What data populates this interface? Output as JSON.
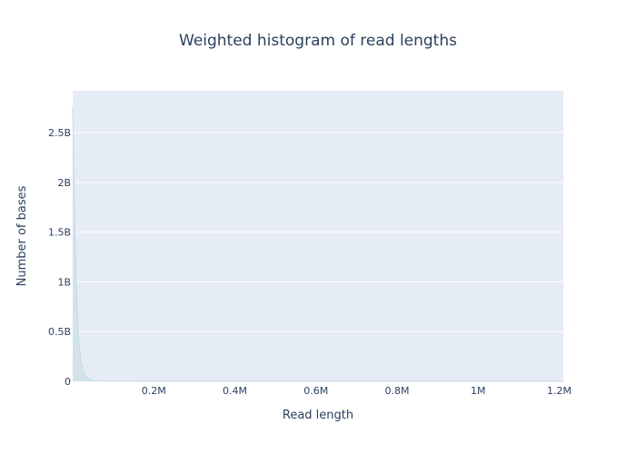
{
  "chart_data": {
    "type": "area",
    "title": "Weighted histogram of read lengths",
    "xlabel": "Read length",
    "ylabel": "Number of bases",
    "xlim": [
      0,
      1210000
    ],
    "ylim": [
      0,
      2920000000
    ],
    "x_ticks": [
      {
        "value": 200000,
        "label": "0.2M"
      },
      {
        "value": 400000,
        "label": "0.4M"
      },
      {
        "value": 600000,
        "label": "0.6M"
      },
      {
        "value": 800000,
        "label": "0.8M"
      },
      {
        "value": 1000000,
        "label": "1M"
      },
      {
        "value": 1200000,
        "label": "1.2M"
      }
    ],
    "y_ticks": [
      {
        "value": 0,
        "label": "0"
      },
      {
        "value": 500000000,
        "label": "0.5B"
      },
      {
        "value": 1000000000,
        "label": "1B"
      },
      {
        "value": 1500000000,
        "label": "1.5B"
      },
      {
        "value": 2000000000,
        "label": "2B"
      },
      {
        "value": 2500000000,
        "label": "2.5B"
      }
    ],
    "grid": true,
    "series": [
      {
        "x": [
          0,
          1000,
          3000,
          6000,
          10000,
          15000,
          20000,
          30000,
          40000,
          50000,
          60000,
          80000,
          100000,
          200000,
          400000,
          600000,
          800000,
          1000000,
          1210000
        ],
        "values": [
          2750000000,
          2550000000,
          2050000000,
          1450000000,
          850000000,
          420000000,
          200000000,
          60000000,
          20000000,
          8000000,
          4000000,
          2000000,
          1000000,
          300000,
          100000,
          50000,
          20000,
          10000,
          5000
        ]
      }
    ],
    "colors": {
      "plot_background": "#e5ecf6",
      "grid": "#ffffff",
      "fill": "#d3e3ec",
      "line": "#c6dbe6",
      "text": "#2a3f5f"
    }
  }
}
